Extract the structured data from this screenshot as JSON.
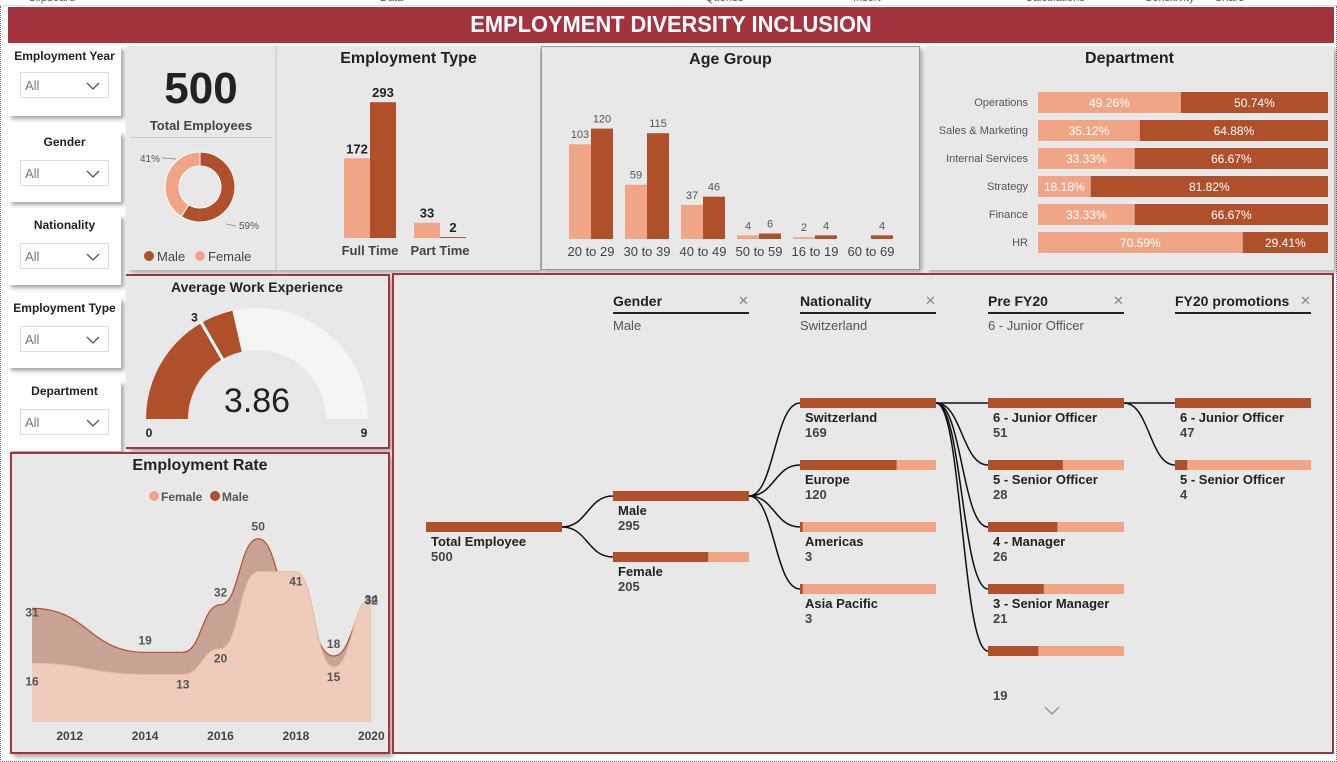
{
  "ribbon": {
    "items": [
      "Clipboard",
      "Data",
      "Queries",
      "Insert",
      "Calculations",
      "Sensitivity",
      "Share"
    ]
  },
  "header": {
    "title": "EMPLOYMENT DIVERSITY INCLUSION"
  },
  "colors": {
    "male": "#b0502b",
    "female": "#f0a686",
    "banner": "#a3333d",
    "panel": "#e8e8e8"
  },
  "slicers": [
    {
      "label": "Employment Year",
      "value": "All"
    },
    {
      "label": "Gender",
      "value": "All"
    },
    {
      "label": "Nationality",
      "value": "All"
    },
    {
      "label": "Employment Type",
      "value": "All"
    },
    {
      "label": "Department",
      "value": "All"
    }
  ],
  "kpi": {
    "value": "500",
    "label": "Total Employees"
  },
  "gender_donut": {
    "chart_data": {
      "type": "pie",
      "slices": [
        {
          "name": "Male",
          "value": 59,
          "label": "59%"
        },
        {
          "name": "Female",
          "value": 41,
          "label": "41%"
        }
      ],
      "legend": [
        "Male",
        "Female"
      ]
    }
  },
  "employment_type": {
    "title": "Employment Type",
    "chart_data": {
      "type": "bar",
      "categories": [
        "Full Time",
        "Part Time"
      ],
      "series": [
        {
          "name": "Female",
          "values": [
            172,
            33
          ]
        },
        {
          "name": "Male",
          "values": [
            293,
            2
          ]
        }
      ],
      "ylim": [
        0,
        300
      ]
    }
  },
  "age_group": {
    "title": "Age Group",
    "chart_data": {
      "type": "bar",
      "categories": [
        "20 to 29",
        "30 to 39",
        "40 to 49",
        "50 to 59",
        "16 to 19",
        "60 to 69"
      ],
      "series": [
        {
          "name": "Female",
          "values": [
            103,
            59,
            37,
            4,
            2,
            null
          ]
        },
        {
          "name": "Male",
          "values": [
            120,
            115,
            46,
            6,
            4,
            4
          ]
        }
      ],
      "ylim": [
        0,
        125
      ]
    }
  },
  "department": {
    "title": "Department",
    "chart_data": {
      "type": "bar",
      "stacked": true,
      "orientation": "horizontal",
      "categories": [
        "Operations",
        "Sales & Marketing",
        "Internal Services",
        "Strategy",
        "Finance",
        "HR"
      ],
      "series": [
        {
          "name": "Female",
          "values": [
            49.26,
            35.12,
            33.33,
            18.18,
            33.33,
            70.59
          ]
        },
        {
          "name": "Male",
          "values": [
            50.74,
            64.88,
            66.67,
            81.82,
            66.67,
            29.41
          ]
        }
      ],
      "labels_female": [
        "49.26%",
        "35.12%",
        "33.33%",
        "18.18%",
        "33.33%",
        "70.59%"
      ],
      "labels_male": [
        "50.74%",
        "64.88%",
        "66.67%",
        "81.82%",
        "66.67%",
        "29.41%"
      ]
    }
  },
  "gauge": {
    "title": "Average Work Experience",
    "chart_data": {
      "type": "gauge",
      "value": 3.86,
      "value_label": "3.86",
      "target": 3,
      "target_label": "3",
      "min": 0,
      "max": 9,
      "min_label": "0",
      "max_label": "9"
    }
  },
  "employment_rate": {
    "title": "Employment Rate",
    "legend": [
      "Female",
      "Male"
    ],
    "chart_data": {
      "type": "area",
      "x": [
        2011,
        2014,
        2015,
        2016,
        2017,
        2018,
        2019,
        2020
      ],
      "x_ticks": [
        "2012",
        "2014",
        "2016",
        "2018",
        "2020"
      ],
      "series": [
        {
          "name": "Female",
          "values": [
            16,
            13,
            13,
            20,
            41,
            41,
            15,
            34
          ],
          "labels": {
            "2011": "16",
            "2015": "13",
            "2016": "20",
            "2018": "41",
            "2019": "15",
            "2020": "34"
          }
        },
        {
          "name": "Male",
          "values": [
            31,
            19,
            19,
            32,
            50,
            32,
            18,
            32
          ],
          "labels": {
            "2011": "31",
            "2014": "19",
            "2016": "32",
            "2017": "50",
            "2019": "18",
            "2020": "32"
          }
        }
      ],
      "ylim": [
        0,
        60
      ]
    }
  },
  "decomp": {
    "columns": [
      {
        "title": "Gender",
        "sub": "Male"
      },
      {
        "title": "Nationality",
        "sub": "Switzerland"
      },
      {
        "title": "Pre FY20",
        "sub": "6 - Junior Officer"
      },
      {
        "title": "FY20 promotions",
        "sub": ""
      }
    ],
    "close_icon": "close-icon",
    "root": {
      "label": "Total Employee",
      "value": "500"
    },
    "level1": [
      {
        "label": "Male",
        "value": "295",
        "pct": 1.0
      },
      {
        "label": "Female",
        "value": "205",
        "pct": 0.7
      }
    ],
    "level2": [
      {
        "label": "Switzerland",
        "value": "169",
        "pct": 1.0
      },
      {
        "label": "Europe",
        "value": "120",
        "pct": 0.71
      },
      {
        "label": "Americas",
        "value": "3",
        "pct": 0.02
      },
      {
        "label": "Asia Pacific",
        "value": "3",
        "pct": 0.02
      }
    ],
    "level3": [
      {
        "label": "6 - Junior Officer",
        "value": "51",
        "pct": 1.0
      },
      {
        "label": "5 - Senior Officer",
        "value": "28",
        "pct": 0.55
      },
      {
        "label": "4 - Manager",
        "value": "26",
        "pct": 0.51
      },
      {
        "label": "3 - Senior Manager",
        "value": "21",
        "pct": 0.41
      },
      {
        "label": "",
        "value": "19",
        "pct": 0.37
      }
    ],
    "level4": [
      {
        "label": "6 - Junior Officer",
        "value": "47",
        "pct": 1.0
      },
      {
        "label": "5 - Senior Officer",
        "value": "4",
        "pct": 0.09
      }
    ]
  }
}
